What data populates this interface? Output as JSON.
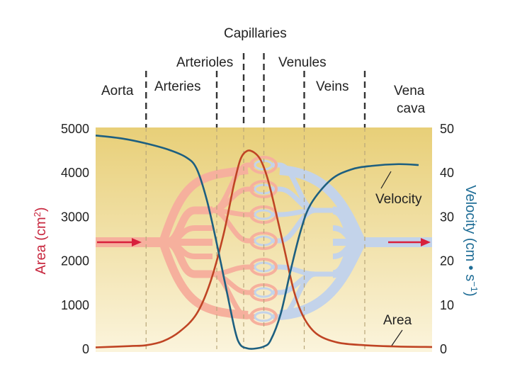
{
  "chart_data": {
    "type": "line",
    "segments": [
      "Aorta",
      "Arteries",
      "Arterioles",
      "Capillaries",
      "Venules",
      "Veins",
      "Vena",
      "cava"
    ],
    "y_left": {
      "label_main": "Area (cm",
      "label_sup": "2",
      "label_end": ")",
      "ticks": [
        "0",
        "1000",
        "2000",
        "3000",
        "4000",
        "5000"
      ],
      "range": [
        0,
        5000
      ],
      "color": "#c8283f"
    },
    "y_right": {
      "label_main": "Velocity (cm • s",
      "label_sup": "−1",
      "label_end": ")",
      "ticks": [
        "0",
        "10",
        "20",
        "30",
        "40",
        "50"
      ],
      "range": [
        0,
        50
      ],
      "color": "#1f6d96"
    },
    "x_range": [
      0,
      100
    ],
    "boundaries": [
      15,
      36,
      44,
      50,
      62,
      80
    ],
    "series": [
      {
        "name": "Area",
        "axis": "left",
        "color": "#bf4424",
        "points": [
          [
            0,
            40
          ],
          [
            10,
            70
          ],
          [
            15,
            90
          ],
          [
            20,
            180
          ],
          [
            25,
            400
          ],
          [
            30,
            800
          ],
          [
            34,
            1500
          ],
          [
            38,
            2600
          ],
          [
            41,
            3700
          ],
          [
            43,
            4300
          ],
          [
            45,
            4500
          ],
          [
            47,
            4470
          ],
          [
            49,
            4300
          ],
          [
            51,
            3900
          ],
          [
            53,
            3300
          ],
          [
            56,
            2300
          ],
          [
            59,
            1300
          ],
          [
            62,
            700
          ],
          [
            66,
            330
          ],
          [
            72,
            150
          ],
          [
            80,
            90
          ],
          [
            90,
            60
          ],
          [
            100,
            50
          ]
        ]
      },
      {
        "name": "Velocity",
        "axis": "right",
        "color": "#1d5f80",
        "points": [
          [
            0,
            48.5
          ],
          [
            8,
            47.8
          ],
          [
            15,
            46.7
          ],
          [
            22,
            45.2
          ],
          [
            27,
            43.5
          ],
          [
            30,
            41
          ],
          [
            33,
            34
          ],
          [
            36,
            24
          ],
          [
            39,
            13
          ],
          [
            41.5,
            4
          ],
          [
            43,
            1
          ],
          [
            45,
            0.2
          ],
          [
            47,
            0.1
          ],
          [
            50,
            0.6
          ],
          [
            52,
            2
          ],
          [
            55,
            8
          ],
          [
            58,
            18
          ],
          [
            61,
            27
          ],
          [
            64,
            33
          ],
          [
            70,
            38.5
          ],
          [
            76,
            40.8
          ],
          [
            82,
            41.6
          ],
          [
            90,
            42
          ],
          [
            96,
            41.8
          ]
        ]
      }
    ],
    "annotations": [
      "Velocity",
      "Area"
    ],
    "grid": false,
    "legend": "none"
  },
  "colors": {
    "background_top": "#e8cf78",
    "background_bottom": "#fbf4dc",
    "arterial_vessels": "#f6b09d",
    "venous_vessels": "#c3d3ea",
    "flow_arrow": "#d8203c",
    "boundary_lines": "#333333"
  }
}
